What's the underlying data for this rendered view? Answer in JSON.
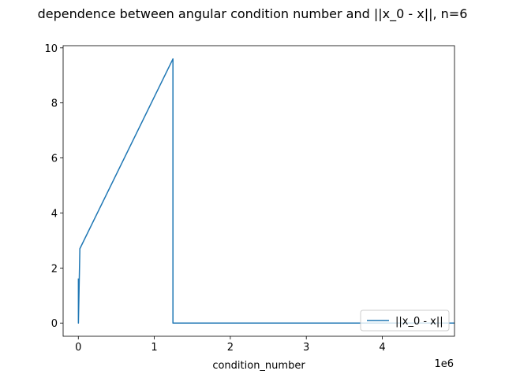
{
  "chart_data": {
    "type": "line",
    "title": "dependence between angular condition number and ||x_0 - x||, n=6",
    "xlabel": "condition_number",
    "ylabel": "",
    "x_offset_text": "1e6",
    "xlim": [
      -200000,
      4950000
    ],
    "ylim": [
      -0.48,
      10.08
    ],
    "x_ticks": [
      0,
      1,
      2,
      3,
      4
    ],
    "y_ticks": [
      0,
      2,
      4,
      6,
      8,
      10
    ],
    "legend": {
      "placement": "lower right"
    },
    "grid": false,
    "series": [
      {
        "name": "||x_0 - x||",
        "color": "#1f77b4",
        "x": [
          1000,
          1000,
          1000,
          1000,
          20000,
          20000,
          1245000,
          1245000,
          1255000,
          4950000
        ],
        "y": [
          1.62,
          0.0,
          1.6,
          0.0,
          2.65,
          2.7,
          9.6,
          0.0,
          0.0,
          0.0
        ]
      }
    ]
  }
}
